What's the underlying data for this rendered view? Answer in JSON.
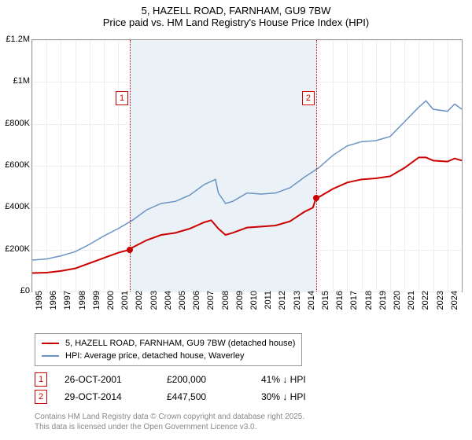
{
  "title_line1": "5, HAZELL ROAD, FARNHAM, GU9 7BW",
  "title_line2": "Price paid vs. HM Land Registry's House Price Index (HPI)",
  "chart": {
    "xrange": [
      1995,
      2025
    ],
    "yrange": [
      0,
      1200000
    ],
    "ytick_step": 200000,
    "yticks": [
      "£0",
      "£200K",
      "£400K",
      "£600K",
      "£800K",
      "£1M",
      "£1.2M"
    ],
    "xticks": [
      "1995",
      "1996",
      "1997",
      "1998",
      "1999",
      "2000",
      "2001",
      "2002",
      "2003",
      "2004",
      "2005",
      "2006",
      "2007",
      "2008",
      "2009",
      "2010",
      "2011",
      "2012",
      "2013",
      "2014",
      "2015",
      "2016",
      "2017",
      "2018",
      "2019",
      "2020",
      "2021",
      "2022",
      "2023",
      "2024"
    ],
    "background_color": "#ffffff",
    "grid_color": "#eeeeee",
    "shade_color": "#eaf2f7",
    "shade_from": 2001.82,
    "shade_to": 2014.83,
    "series": [
      {
        "name": "subject",
        "color": "#cc0000",
        "width": 2,
        "data": [
          [
            1995,
            88000
          ],
          [
            1996,
            90000
          ],
          [
            1997,
            98000
          ],
          [
            1998,
            110000
          ],
          [
            1999,
            135000
          ],
          [
            2000,
            160000
          ],
          [
            2001,
            185000
          ],
          [
            2001.82,
            200000
          ],
          [
            2002,
            210000
          ],
          [
            2003,
            245000
          ],
          [
            2004,
            270000
          ],
          [
            2005,
            280000
          ],
          [
            2006,
            300000
          ],
          [
            2007,
            330000
          ],
          [
            2007.5,
            340000
          ],
          [
            2008,
            300000
          ],
          [
            2008.5,
            270000
          ],
          [
            2009,
            280000
          ],
          [
            2010,
            305000
          ],
          [
            2011,
            310000
          ],
          [
            2012,
            315000
          ],
          [
            2013,
            335000
          ],
          [
            2014,
            380000
          ],
          [
            2014.6,
            400000
          ],
          [
            2014.83,
            447500
          ],
          [
            2015,
            450000
          ],
          [
            2016,
            490000
          ],
          [
            2017,
            520000
          ],
          [
            2018,
            535000
          ],
          [
            2019,
            540000
          ],
          [
            2020,
            550000
          ],
          [
            2021,
            590000
          ],
          [
            2022,
            640000
          ],
          [
            2022.5,
            640000
          ],
          [
            2023,
            625000
          ],
          [
            2024,
            620000
          ],
          [
            2024.5,
            635000
          ],
          [
            2025,
            625000
          ]
        ]
      },
      {
        "name": "hpi",
        "color": "#6a93c4",
        "width": 1.5,
        "data": [
          [
            1995,
            150000
          ],
          [
            1996,
            155000
          ],
          [
            1997,
            170000
          ],
          [
            1998,
            190000
          ],
          [
            1999,
            225000
          ],
          [
            2000,
            265000
          ],
          [
            2001,
            300000
          ],
          [
            2002,
            340000
          ],
          [
            2003,
            390000
          ],
          [
            2004,
            420000
          ],
          [
            2005,
            430000
          ],
          [
            2006,
            460000
          ],
          [
            2007,
            510000
          ],
          [
            2007.8,
            535000
          ],
          [
            2008,
            470000
          ],
          [
            2008.5,
            420000
          ],
          [
            2009,
            430000
          ],
          [
            2010,
            470000
          ],
          [
            2011,
            465000
          ],
          [
            2012,
            470000
          ],
          [
            2013,
            495000
          ],
          [
            2014,
            545000
          ],
          [
            2015,
            590000
          ],
          [
            2016,
            650000
          ],
          [
            2017,
            695000
          ],
          [
            2018,
            715000
          ],
          [
            2019,
            720000
          ],
          [
            2020,
            740000
          ],
          [
            2021,
            810000
          ],
          [
            2022,
            880000
          ],
          [
            2022.5,
            910000
          ],
          [
            2023,
            870000
          ],
          [
            2024,
            860000
          ],
          [
            2024.5,
            895000
          ],
          [
            2025,
            870000
          ]
        ]
      }
    ],
    "markers": [
      {
        "num": "1",
        "x": 2001.82,
        "y": 200000
      },
      {
        "num": "2",
        "x": 2014.83,
        "y": 447500
      }
    ]
  },
  "legend": {
    "items": [
      {
        "color": "#cc0000",
        "label": "5, HAZELL ROAD, FARNHAM, GU9 7BW (detached house)"
      },
      {
        "color": "#6a93c4",
        "label": "HPI: Average price, detached house, Waverley"
      }
    ]
  },
  "table": {
    "rows": [
      {
        "num": "1",
        "date": "26-OCT-2001",
        "price": "£200,000",
        "pct": "41% ↓ HPI"
      },
      {
        "num": "2",
        "date": "29-OCT-2014",
        "price": "£447,500",
        "pct": "30% ↓ HPI"
      }
    ]
  },
  "attrib_line1": "Contains HM Land Registry data © Crown copyright and database right 2025.",
  "attrib_line2": "This data is licensed under the Open Government Licence v3.0."
}
